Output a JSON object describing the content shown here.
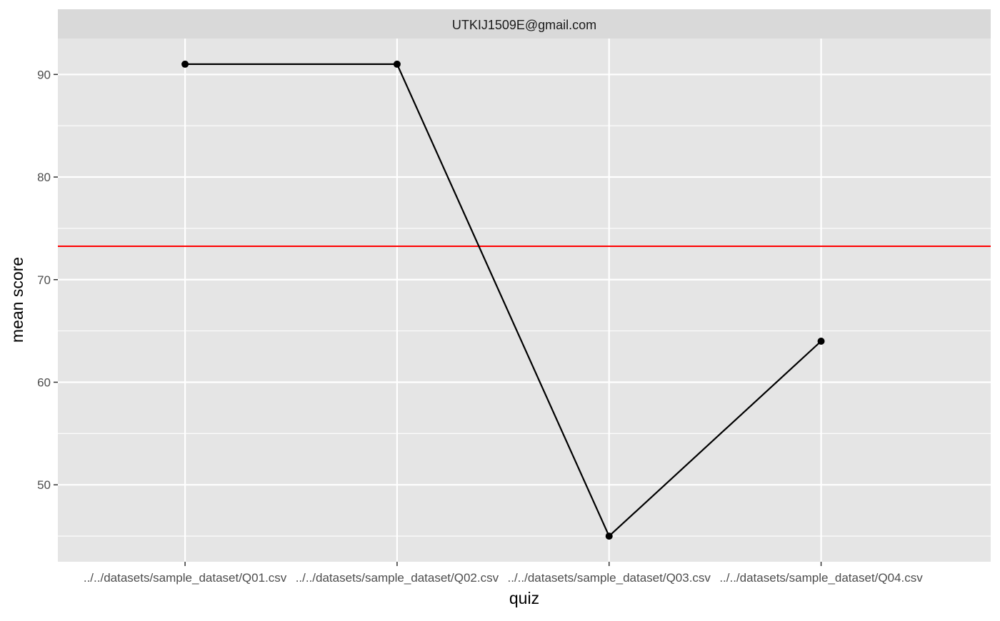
{
  "chart_data": {
    "type": "line",
    "facet_label": "UTKIJ1509E@gmail.com",
    "title": "",
    "xlabel": "quiz",
    "ylabel": "mean score",
    "categories": [
      "../../datasets/sample_dataset/Q01.csv",
      "../../datasets/sample_dataset/Q02.csv",
      "../../datasets/sample_dataset/Q03.csv",
      "../../datasets/sample_dataset/Q04.csv"
    ],
    "series": [
      {
        "values": [
          91,
          91,
          45,
          64
        ],
        "color": "#000000"
      }
    ],
    "reference_line": {
      "y": 73.25,
      "color": "#ff0000"
    },
    "ylim": [
      42.5,
      93.5
    ],
    "yticks": [
      50,
      60,
      70,
      80,
      90
    ],
    "grid": true,
    "legend": "none",
    "panel_background": "#e5e5e5",
    "strip_background": "#d9d9d9",
    "grid_color": "#ffffff"
  }
}
